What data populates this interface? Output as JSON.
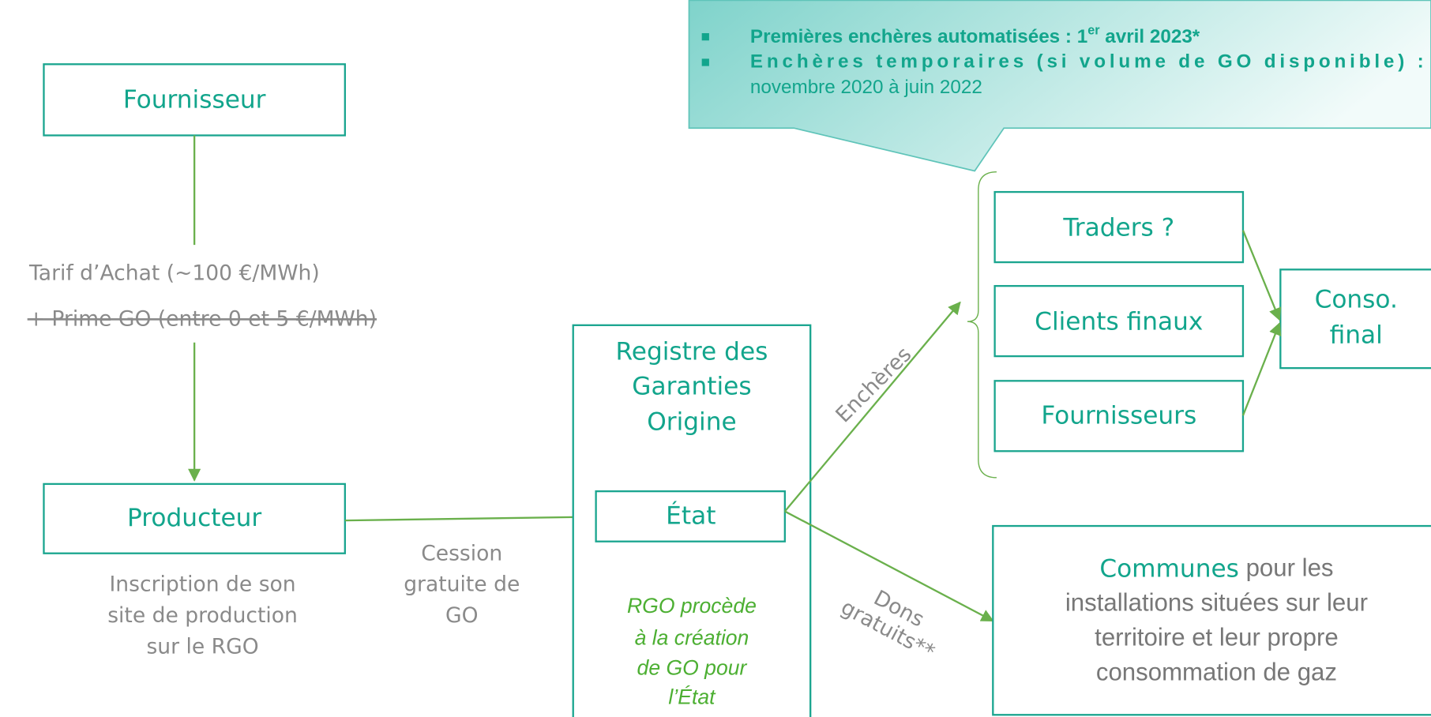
{
  "callout": {
    "bullet1_prefix": "Premières enchères automatisées : 1",
    "bullet1_sup": "er",
    "bullet1_suffix": " avril 2023*",
    "bullet2_bold": "Enchères temporaires (si volume de GO disponible) :",
    "bullet2_normal": "novembre 2020 à juin 2022"
  },
  "nodes": {
    "fournisseur": "Fournisseur",
    "tarif": "Tarif d’Achat (~100 €/MWh)",
    "prime": "+ Prime GO (entre 0 et 5 €/MWh)",
    "producteur": "Producteur",
    "inscription": [
      "Inscription de son",
      "site de production",
      "sur le RGO"
    ],
    "cession": [
      "Cession",
      "gratuite de",
      "GO"
    ],
    "registre": [
      "Registre des",
      "Garanties",
      "Origine"
    ],
    "etat": "État",
    "rgo_note": [
      "RGO procède",
      "à la création",
      "de GO pour",
      "l’État"
    ],
    "encheres": "Enchères",
    "dons": [
      "Dons",
      "gratuits**"
    ],
    "traders": "Traders ?",
    "clients": "Clients finaux",
    "fournisseurs": "Fournisseurs",
    "conso": [
      "Conso.",
      "final"
    ],
    "communes_bold": "Communes",
    "communes_rest": " pour les",
    "communes_lines": [
      "installations situées sur leur",
      "territoire et leur propre",
      "consommation de gaz"
    ]
  }
}
